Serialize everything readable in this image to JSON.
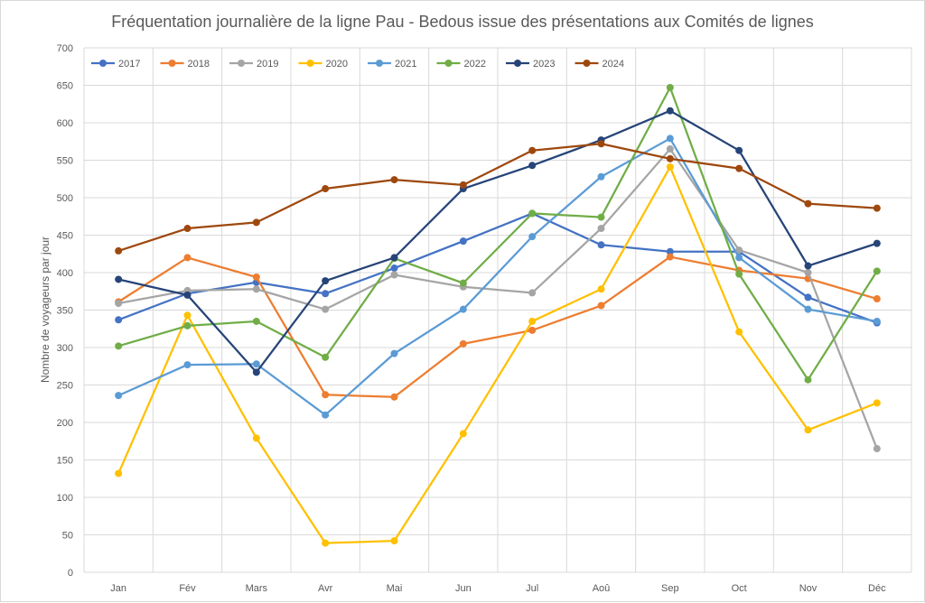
{
  "chart_data": {
    "type": "line",
    "title": "Fréquentation journalière de la ligne Pau - Bedous issue des présentations aux Comités de lignes",
    "xlabel": "",
    "ylabel": "Nombre de voyageurs par jour",
    "ylim": [
      0,
      700
    ],
    "yticks": [
      0,
      50,
      100,
      150,
      200,
      250,
      300,
      350,
      400,
      450,
      500,
      550,
      600,
      650,
      700
    ],
    "grid": true,
    "legend_position": "top-left",
    "categories": [
      "Jan",
      "Fév",
      "Mars",
      "Avr",
      "Mai",
      "Jun",
      "Jul",
      "Aoû",
      "Sep",
      "Oct",
      "Nov",
      "Déc"
    ],
    "series": [
      {
        "name": "2017",
        "color": "#4472c4",
        "values": [
          337,
          372,
          387,
          372,
          406,
          442,
          479,
          437,
          428,
          428,
          367,
          333
        ]
      },
      {
        "name": "2018",
        "color": "#ed7d31",
        "values": [
          361,
          420,
          394,
          237,
          234,
          305,
          323,
          356,
          421,
          403,
          392,
          365
        ]
      },
      {
        "name": "2019",
        "color": "#a5a5a5",
        "values": [
          359,
          376,
          378,
          351,
          397,
          381,
          373,
          459,
          565,
          430,
          400,
          165
        ]
      },
      {
        "name": "2020",
        "color": "#ffc000",
        "values": [
          132,
          343,
          179,
          39,
          42,
          185,
          335,
          378,
          541,
          321,
          190,
          226
        ]
      },
      {
        "name": "2021",
        "color": "#5b9bd5",
        "values": [
          236,
          277,
          278,
          210,
          292,
          351,
          448,
          528,
          579,
          420,
          351,
          335
        ]
      },
      {
        "name": "2022",
        "color": "#70ad47",
        "values": [
          302,
          329,
          335,
          287,
          419,
          386,
          479,
          474,
          647,
          398,
          257,
          402
        ]
      },
      {
        "name": "2023",
        "color": "#264478",
        "values": [
          391,
          370,
          267,
          389,
          420,
          512,
          543,
          577,
          616,
          563,
          409,
          439
        ]
      },
      {
        "name": "2024",
        "color": "#9e480e",
        "values": [
          429,
          459,
          467,
          512,
          524,
          517,
          563,
          572,
          552,
          539,
          492,
          486
        ]
      }
    ]
  }
}
